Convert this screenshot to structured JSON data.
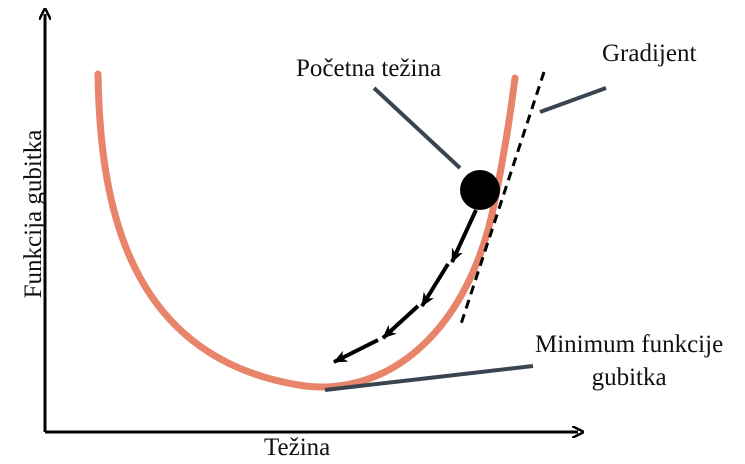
{
  "labels": {
    "y_axis": "Funkcija gubitka",
    "x_axis": "Težina",
    "initial_weight": "Početna težina",
    "gradient": "Gradijent",
    "minimum_line1": "Minimum funkcije",
    "minimum_line2": "gubitka"
  },
  "colors": {
    "curve": "#E8846A",
    "axes": "#000000",
    "arrows": "#000000",
    "pointer_lines": "#3a4450",
    "ball": "#000000"
  }
}
